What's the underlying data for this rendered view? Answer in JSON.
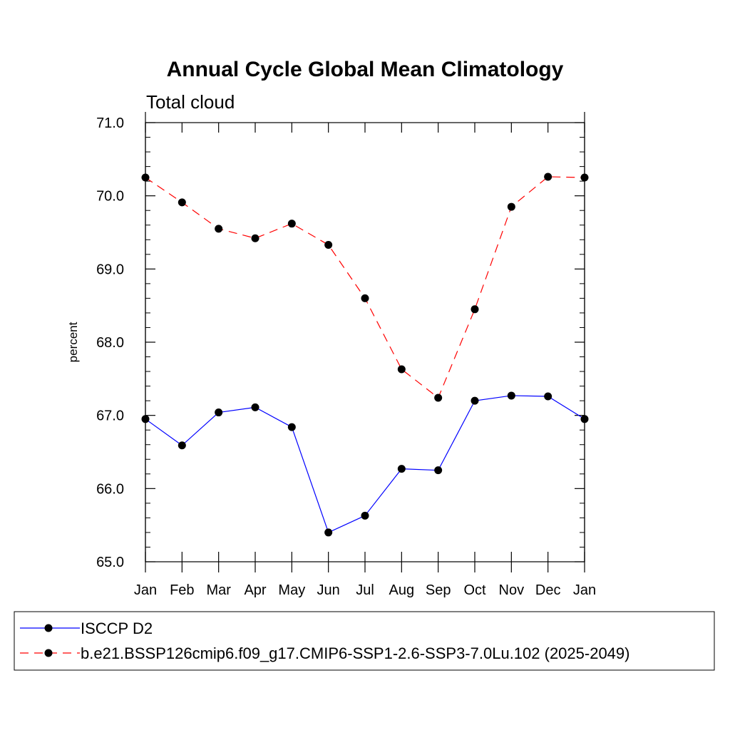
{
  "chart_data": {
    "type": "line",
    "title": "Annual Cycle Global Mean Climatology",
    "subtitle": "Total cloud",
    "xlabel": "",
    "ylabel": "percent",
    "categories": [
      "Jan",
      "Feb",
      "Mar",
      "Apr",
      "May",
      "Jun",
      "Jul",
      "Aug",
      "Sep",
      "Oct",
      "Nov",
      "Dec",
      "Jan"
    ],
    "ylim": [
      65.0,
      71.0
    ],
    "yticks": [
      "65.0",
      "66.0",
      "67.0",
      "68.0",
      "69.0",
      "70.0",
      "71.0"
    ],
    "grid": false,
    "legend_position": "bottom",
    "series": [
      {
        "name": "ISCCP D2",
        "color": "#0000ff",
        "dash": "solid",
        "marker": "circle",
        "values": [
          66.95,
          66.59,
          67.04,
          67.11,
          66.84,
          65.4,
          65.63,
          66.27,
          66.25,
          67.2,
          67.27,
          67.26,
          66.95
        ]
      },
      {
        "name": "b.e21.BSSP126cmip6.f09_g17.CMIP6-SSP1-2.6-SSP3-7.0Lu.102 (2025-2049)",
        "color": "#ff0000",
        "dash": "dashed",
        "marker": "circle",
        "values": [
          70.25,
          69.91,
          69.55,
          69.42,
          69.62,
          69.33,
          68.6,
          67.63,
          67.24,
          68.45,
          69.85,
          70.26,
          70.25
        ]
      }
    ]
  }
}
